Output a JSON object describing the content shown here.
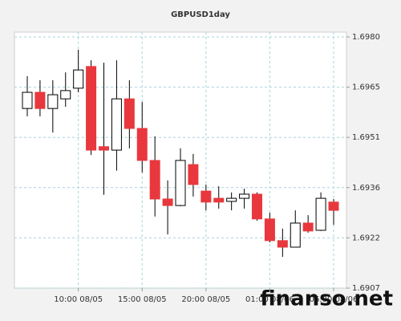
{
  "chart_data": {
    "type": "candlestick",
    "title": "GBPUSD1day",
    "watermark": "finanso.net",
    "categories": [
      null,
      null,
      null,
      null,
      null,
      null,
      null,
      null,
      null,
      null,
      null,
      null,
      null,
      null,
      null,
      null,
      null,
      null,
      null,
      null,
      null,
      null,
      null,
      null,
      null
    ],
    "open": [
      1.69592,
      1.69639,
      1.69592,
      1.6962,
      1.69651,
      1.69714,
      1.69481,
      1.69471,
      1.6962,
      1.69534,
      1.69441,
      1.69329,
      1.6931,
      1.69429,
      1.69352,
      1.69331,
      1.69322,
      1.69331,
      1.69343,
      1.69271,
      1.69208,
      1.69189,
      1.69259,
      1.69238,
      1.6932
    ],
    "high": [
      1.69686,
      1.69674,
      1.69674,
      1.69697,
      1.69763,
      1.69732,
      1.69725,
      1.69732,
      1.69674,
      1.69611,
      1.69511,
      1.69383,
      1.69476,
      1.6946,
      1.69371,
      1.69366,
      1.69348,
      1.69359,
      1.69348,
      1.69289,
      1.69243,
      1.69296,
      1.69282,
      1.69348,
      1.69329
    ],
    "low": [
      1.69569,
      1.69569,
      1.69522,
      1.69597,
      1.69639,
      1.69457,
      1.69341,
      1.69411,
      1.69476,
      1.69406,
      1.69278,
      1.69226,
      1.69308,
      1.69336,
      1.69296,
      1.69301,
      1.69296,
      1.69301,
      1.69266,
      1.69203,
      1.69161,
      1.69189,
      1.69231,
      1.69236,
      1.69254
    ],
    "close": [
      1.69639,
      1.69592,
      1.69632,
      1.69644,
      1.69704,
      1.69471,
      1.69471,
      1.6962,
      1.69534,
      1.69441,
      1.69329,
      1.6931,
      1.69441,
      1.69371,
      1.6932,
      1.6932,
      1.69331,
      1.69343,
      1.69271,
      1.69208,
      1.69189,
      1.69259,
      1.69236,
      1.69331,
      1.69296
    ],
    "up_color": "#ffffff",
    "down_color": "#e8383d",
    "ylim": [
      1.6907,
      1.69814
    ],
    "yticks": [
      1.6907,
      {
        "value": 1.69216,
        "label": "1.6922"
      },
      {
        "value": 1.69362,
        "label": "1.6936"
      },
      {
        "value": 1.69508,
        "label": "1.6951"
      },
      {
        "value": 1.69654,
        "label": "1.6965"
      },
      {
        "value": 1.698,
        "label": "1.6980"
      }
    ],
    "xticks": [
      {
        "value": 4,
        "label": "10:00 08/05"
      },
      {
        "value": 9,
        "label": "15:00 08/05"
      },
      {
        "value": 14,
        "label": "20:00 08/05"
      },
      {
        "value": 19,
        "label": "01:00 08/06"
      },
      {
        "value": 24,
        "label": "06:00 08/06"
      }
    ],
    "grid": true
  }
}
